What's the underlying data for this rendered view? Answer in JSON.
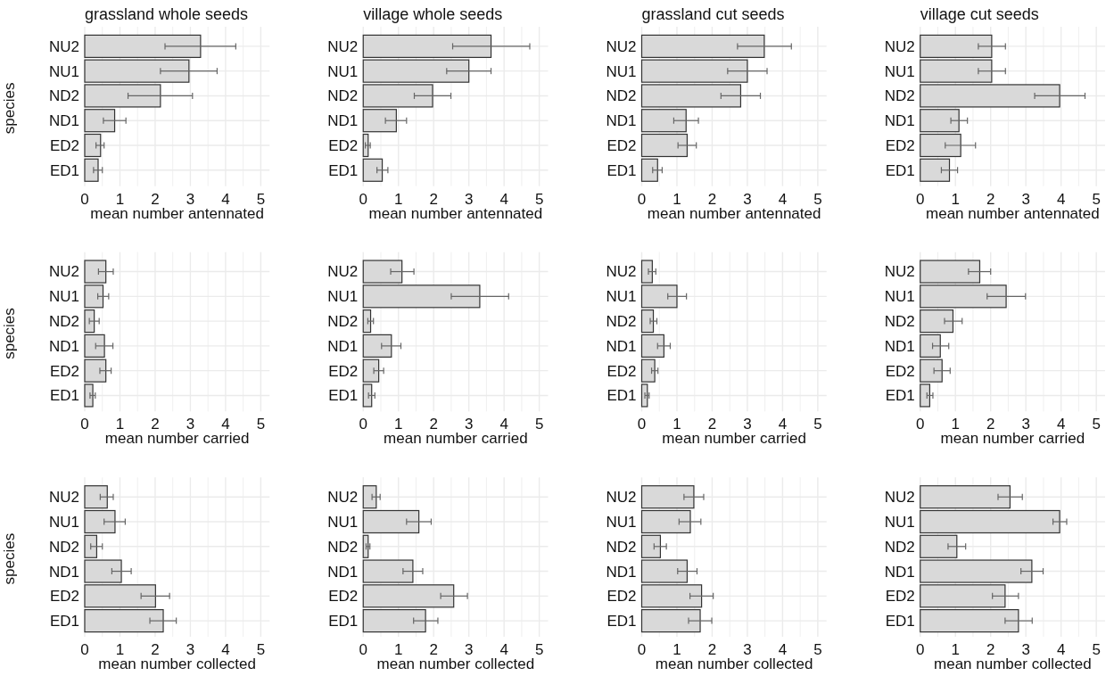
{
  "chart_data": [
    {
      "type": "bar",
      "orientation": "horizontal",
      "title": "grassland whole seeds",
      "ylabel": "species",
      "xlabel": "mean number antennated",
      "categories": [
        "NU2",
        "NU1",
        "ND2",
        "ND1",
        "ED2",
        "ED1"
      ],
      "values": [
        3.29,
        2.96,
        2.15,
        0.85,
        0.45,
        0.38
      ],
      "errors": [
        [
          2.28,
          4.29
        ],
        [
          2.15,
          3.76
        ],
        [
          1.23,
          3.06
        ],
        [
          0.53,
          1.17
        ],
        [
          0.32,
          0.55
        ],
        [
          0.25,
          0.5
        ]
      ],
      "color": "#d9d9d9",
      "xlim": [
        0,
        5.25
      ],
      "xticks": [
        0,
        1,
        2,
        3,
        4,
        5
      ],
      "grid": true
    },
    {
      "type": "bar",
      "orientation": "horizontal",
      "title": "village whole seeds",
      "xlabel": "mean number antennated",
      "categories": [
        "NU2",
        "NU1",
        "ND2",
        "ND1",
        "ED2",
        "ED1"
      ],
      "values": [
        3.63,
        3.0,
        1.97,
        0.94,
        0.14,
        0.54
      ],
      "errors": [
        [
          2.54,
          4.73
        ],
        [
          2.37,
          3.63
        ],
        [
          1.45,
          2.49
        ],
        [
          0.63,
          1.23
        ],
        [
          0.06,
          0.2
        ],
        [
          0.39,
          0.7
        ]
      ],
      "color": "#d9d9d9",
      "xlim": [
        0,
        5.25
      ],
      "xticks": [
        0,
        1,
        2,
        3,
        4,
        5
      ],
      "grid": true
    },
    {
      "type": "bar",
      "orientation": "horizontal",
      "title": "grassland cut seeds",
      "xlabel": "mean number antennated",
      "categories": [
        "NU2",
        "NU1",
        "ND2",
        "ND1",
        "ED2",
        "ED1"
      ],
      "values": [
        3.48,
        3.0,
        2.81,
        1.26,
        1.29,
        0.45
      ],
      "errors": [
        [
          2.72,
          4.25
        ],
        [
          2.44,
          3.56
        ],
        [
          2.25,
          3.37
        ],
        [
          0.91,
          1.61
        ],
        [
          1.03,
          1.55
        ],
        [
          0.31,
          0.58
        ]
      ],
      "color": "#d9d9d9",
      "xlim": [
        0,
        5.25
      ],
      "xticks": [
        0,
        1,
        2,
        3,
        4,
        5
      ],
      "grid": true
    },
    {
      "type": "bar",
      "orientation": "horizontal",
      "title": "village cut seeds",
      "xlabel": "mean number antennated",
      "categories": [
        "NU2",
        "NU1",
        "ND2",
        "ND1",
        "ED2",
        "ED1"
      ],
      "values": [
        2.03,
        2.03,
        3.96,
        1.1,
        1.15,
        0.83
      ],
      "errors": [
        [
          1.65,
          2.42
        ],
        [
          1.65,
          2.42
        ],
        [
          3.25,
          4.68
        ],
        [
          0.87,
          1.34
        ],
        [
          0.71,
          1.57
        ],
        [
          0.6,
          1.06
        ]
      ],
      "color": "#d9d9d9",
      "xlim": [
        0,
        5.25
      ],
      "xticks": [
        0,
        1,
        2,
        3,
        4,
        5
      ],
      "grid": true
    },
    {
      "type": "bar",
      "orientation": "horizontal",
      "ylabel": "species",
      "xlabel": "mean number carried",
      "categories": [
        "NU2",
        "NU1",
        "ND2",
        "ND1",
        "ED2",
        "ED1"
      ],
      "values": [
        0.6,
        0.52,
        0.27,
        0.56,
        0.6,
        0.23
      ],
      "errors": [
        [
          0.39,
          0.81
        ],
        [
          0.37,
          0.68
        ],
        [
          0.13,
          0.41
        ],
        [
          0.31,
          0.8
        ],
        [
          0.43,
          0.75
        ],
        [
          0.15,
          0.3
        ]
      ],
      "color": "#d9d9d9",
      "xlim": [
        0,
        5.25
      ],
      "xticks": [
        0,
        1,
        2,
        3,
        4,
        5
      ],
      "grid": true
    },
    {
      "type": "bar",
      "orientation": "horizontal",
      "xlabel": "mean number carried",
      "categories": [
        "NU2",
        "NU1",
        "ND2",
        "ND1",
        "ED2",
        "ED1"
      ],
      "values": [
        1.1,
        3.31,
        0.21,
        0.8,
        0.44,
        0.24
      ],
      "errors": [
        [
          0.78,
          1.44
        ],
        [
          2.5,
          4.13
        ],
        [
          0.13,
          0.29
        ],
        [
          0.52,
          1.07
        ],
        [
          0.3,
          0.58
        ],
        [
          0.15,
          0.33
        ]
      ],
      "color": "#d9d9d9",
      "xlim": [
        0,
        5.25
      ],
      "xticks": [
        0,
        1,
        2,
        3,
        4,
        5
      ],
      "grid": true
    },
    {
      "type": "bar",
      "orientation": "horizontal",
      "xlabel": "mean number carried",
      "categories": [
        "NU2",
        "NU1",
        "ND2",
        "ND1",
        "ED2",
        "ED1"
      ],
      "values": [
        0.3,
        1.0,
        0.33,
        0.63,
        0.37,
        0.16
      ],
      "errors": [
        [
          0.19,
          0.4
        ],
        [
          0.74,
          1.27
        ],
        [
          0.24,
          0.43
        ],
        [
          0.45,
          0.81
        ],
        [
          0.28,
          0.46
        ],
        [
          0.09,
          0.21
        ]
      ],
      "color": "#d9d9d9",
      "xlim": [
        0,
        5.25
      ],
      "xticks": [
        0,
        1,
        2,
        3,
        4,
        5
      ],
      "grid": true
    },
    {
      "type": "bar",
      "orientation": "horizontal",
      "xlabel": "mean number carried",
      "categories": [
        "NU2",
        "NU1",
        "ND2",
        "ND1",
        "ED2",
        "ED1"
      ],
      "values": [
        1.69,
        2.44,
        0.93,
        0.57,
        0.62,
        0.27
      ],
      "errors": [
        [
          1.37,
          2.0
        ],
        [
          1.9,
          2.99
        ],
        [
          0.69,
          1.19
        ],
        [
          0.35,
          0.81
        ],
        [
          0.39,
          0.85
        ],
        [
          0.19,
          0.36
        ]
      ],
      "color": "#d9d9d9",
      "xlim": [
        0,
        5.25
      ],
      "xticks": [
        0,
        1,
        2,
        3,
        4,
        5
      ],
      "grid": true
    },
    {
      "type": "bar",
      "orientation": "horizontal",
      "ylabel": "species",
      "xlabel": "mean number collected",
      "categories": [
        "NU2",
        "NU1",
        "ND2",
        "ND1",
        "ED2",
        "ED1"
      ],
      "values": [
        0.64,
        0.86,
        0.34,
        1.04,
        2.01,
        2.23
      ],
      "errors": [
        [
          0.44,
          0.81
        ],
        [
          0.55,
          1.15
        ],
        [
          0.17,
          0.5
        ],
        [
          0.77,
          1.32
        ],
        [
          1.6,
          2.41
        ],
        [
          1.85,
          2.6
        ]
      ],
      "color": "#d9d9d9",
      "xlim": [
        0,
        5.25
      ],
      "xticks": [
        0,
        1,
        2,
        3,
        4,
        5
      ],
      "grid": true
    },
    {
      "type": "bar",
      "orientation": "horizontal",
      "xlabel": "mean number collected",
      "categories": [
        "NU2",
        "NU1",
        "ND2",
        "ND1",
        "ED2",
        "ED1"
      ],
      "values": [
        0.37,
        1.58,
        0.14,
        1.41,
        2.57,
        1.77
      ],
      "errors": [
        [
          0.25,
          0.48
        ],
        [
          1.23,
          1.93
        ],
        [
          0.08,
          0.19
        ],
        [
          1.13,
          1.69
        ],
        [
          2.2,
          2.96
        ],
        [
          1.43,
          2.12
        ]
      ],
      "color": "#d9d9d9",
      "xlim": [
        0,
        5.25
      ],
      "xticks": [
        0,
        1,
        2,
        3,
        4,
        5
      ],
      "grid": true
    },
    {
      "type": "bar",
      "orientation": "horizontal",
      "xlabel": "mean number collected",
      "categories": [
        "NU2",
        "NU1",
        "ND2",
        "ND1",
        "ED2",
        "ED1"
      ],
      "values": [
        1.48,
        1.38,
        0.53,
        1.29,
        1.7,
        1.66
      ],
      "errors": [
        [
          1.2,
          1.76
        ],
        [
          1.06,
          1.68
        ],
        [
          0.35,
          0.7
        ],
        [
          1.02,
          1.57
        ],
        [
          1.37,
          2.03
        ],
        [
          1.33,
          1.99
        ]
      ],
      "color": "#d9d9d9",
      "xlim": [
        0,
        5.25
      ],
      "xticks": [
        0,
        1,
        2,
        3,
        4,
        5
      ],
      "grid": true
    },
    {
      "type": "bar",
      "orientation": "horizontal",
      "xlabel": "mean number collected",
      "categories": [
        "NU2",
        "NU1",
        "ND2",
        "ND1",
        "ED2",
        "ED1"
      ],
      "values": [
        2.55,
        3.96,
        1.04,
        3.17,
        2.41,
        2.79
      ],
      "errors": [
        [
          2.21,
          2.9
        ],
        [
          3.77,
          4.16
        ],
        [
          0.79,
          1.29
        ],
        [
          2.86,
          3.49
        ],
        [
          2.05,
          2.79
        ],
        [
          2.41,
          3.18
        ]
      ],
      "color": "#d9d9d9",
      "xlim": [
        0,
        5.25
      ],
      "xticks": [
        0,
        1,
        2,
        3,
        4,
        5
      ],
      "grid": true
    }
  ]
}
